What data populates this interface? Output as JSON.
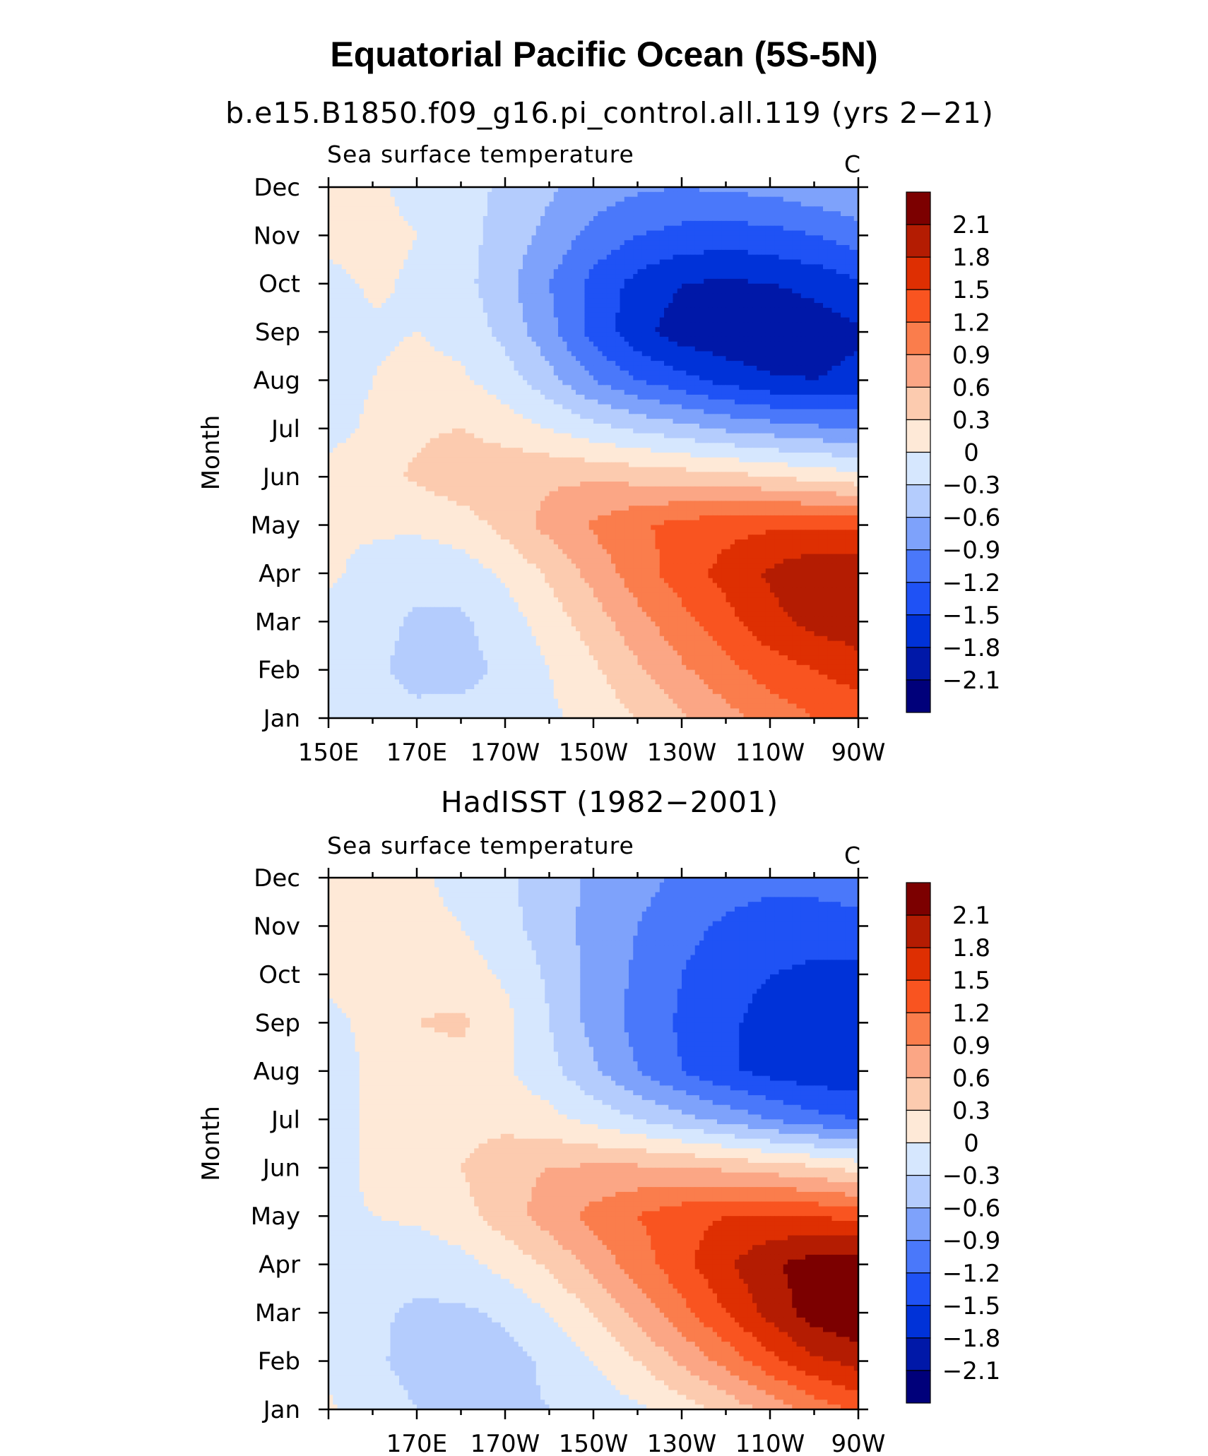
{
  "title": "Equatorial Pacific Ocean (5S-5N)",
  "colors": {
    "levels": [
      -2.1,
      -1.8,
      -1.5,
      -1.2,
      -0.9,
      -0.6,
      -0.3,
      0,
      0.3,
      0.6,
      0.9,
      1.2,
      1.5,
      1.8,
      2.1
    ],
    "fills": [
      "#00007a",
      "#0018a8",
      "#0032d8",
      "#1f52f5",
      "#4a78fa",
      "#7ea2fb",
      "#b4ccfd",
      "#d6e7fe",
      "#fee9d7",
      "#fccbaf",
      "#fba685",
      "#fa7d4c",
      "#f95420",
      "#de2f02",
      "#b41c02",
      "#7c0000"
    ]
  },
  "chart_data": [
    {
      "type": "heatmap",
      "title": "b.e15.B1850.f09_g16.pi_control.all.119 (yrs 2−21)",
      "variable": "Sea surface temperature",
      "units": "C",
      "xlabel": "",
      "ylabel": "Month",
      "x": [
        150,
        160,
        170,
        180,
        190,
        200,
        210,
        220,
        230,
        240,
        250,
        260,
        270
      ],
      "x_ticklabels": [
        "150E",
        "170E",
        "170W",
        "150W",
        "130W",
        "110W",
        "90W"
      ],
      "xlim": [
        150,
        270
      ],
      "y_ticklabels": [
        "Jan",
        "Feb",
        "Mar",
        "Apr",
        "May",
        "Jun",
        "Jul",
        "Aug",
        "Sep",
        "Oct",
        "Nov",
        "Dec"
      ],
      "colorbar_labels": [
        "2.1",
        "1.8",
        "1.5",
        "1.2",
        "0.9",
        "0.6",
        "0.3",
        "0",
        "−0.3",
        "−0.6",
        "−0.9",
        "−1.2",
        "−1.5",
        "−1.8",
        "−2.1"
      ],
      "z": [
        [
          -0.1,
          -0.15,
          -0.22,
          -0.2,
          -0.15,
          -0.05,
          0.1,
          0.3,
          0.55,
          0.8,
          1.0,
          1.2,
          1.3
        ],
        [
          -0.1,
          -0.25,
          -0.4,
          -0.4,
          -0.25,
          0.0,
          0.25,
          0.55,
          0.85,
          1.1,
          1.35,
          1.5,
          1.65
        ],
        [
          -0.1,
          -0.2,
          -0.35,
          -0.35,
          -0.15,
          0.15,
          0.45,
          0.8,
          1.1,
          1.4,
          1.7,
          1.9,
          2.0
        ],
        [
          0.05,
          -0.1,
          -0.2,
          -0.15,
          0.05,
          0.35,
          0.7,
          1.05,
          1.35,
          1.6,
          1.85,
          2.05,
          2.1
        ],
        [
          0.05,
          0.05,
          0.05,
          0.15,
          0.4,
          0.7,
          0.95,
          1.15,
          1.3,
          1.4,
          1.45,
          1.45,
          1.4
        ],
        [
          0.1,
          0.2,
          0.35,
          0.5,
          0.55,
          0.55,
          0.55,
          0.5,
          0.45,
          0.4,
          0.3,
          0.2,
          0.1
        ],
        [
          -0.1,
          0.05,
          0.25,
          0.3,
          0.15,
          0.0,
          -0.2,
          -0.35,
          -0.5,
          -0.65,
          -0.75,
          -0.85,
          -0.9
        ],
        [
          -0.15,
          0.0,
          0.1,
          0.05,
          -0.15,
          -0.5,
          -0.9,
          -1.2,
          -1.4,
          -1.6,
          -1.75,
          -1.8,
          -1.7
        ],
        [
          -0.2,
          -0.05,
          0.0,
          -0.1,
          -0.4,
          -0.8,
          -1.3,
          -1.7,
          -1.95,
          -2.05,
          -2.1,
          -2.0,
          -1.85
        ],
        [
          -0.1,
          0.05,
          -0.05,
          -0.2,
          -0.5,
          -0.9,
          -1.3,
          -1.6,
          -1.8,
          -1.85,
          -1.8,
          -1.7,
          -1.55
        ],
        [
          0.1,
          0.1,
          0.0,
          -0.2,
          -0.4,
          -0.7,
          -1.0,
          -1.2,
          -1.3,
          -1.35,
          -1.3,
          -1.2,
          -1.05
        ],
        [
          0.15,
          0.05,
          -0.1,
          -0.2,
          -0.35,
          -0.55,
          -0.75,
          -0.85,
          -0.9,
          -0.85,
          -0.8,
          -0.7,
          -0.6
        ]
      ]
    },
    {
      "type": "heatmap",
      "title": "HadISST (1982−2001)",
      "variable": "Sea surface temperature",
      "units": "C",
      "xlabel": "",
      "ylabel": "Month",
      "x": [
        150,
        160,
        170,
        180,
        190,
        200,
        210,
        220,
        230,
        240,
        250,
        260,
        270
      ],
      "x_ticklabels": [
        "170E",
        "170W",
        "150W",
        "130W",
        "110W",
        "90W"
      ],
      "xlim": [
        150,
        270
      ],
      "y_ticklabels": [
        "Jan",
        "Feb",
        "Mar",
        "Apr",
        "May",
        "Jun",
        "Jul",
        "Aug",
        "Sep",
        "Oct",
        "Nov",
        "Dec"
      ],
      "colorbar_labels": [
        "2.1",
        "1.8",
        "1.5",
        "1.2",
        "0.9",
        "0.6",
        "0.3",
        "0",
        "−0.3",
        "−0.6",
        "−0.9",
        "−1.2",
        "−1.5",
        "−1.8",
        "−2.1"
      ],
      "z": [
        [
          0.05,
          -0.15,
          -0.3,
          -0.35,
          -0.35,
          -0.3,
          -0.2,
          -0.05,
          0.15,
          0.4,
          0.7,
          1.0,
          1.3
        ],
        [
          -0.1,
          -0.25,
          -0.4,
          -0.45,
          -0.4,
          -0.25,
          0.0,
          0.3,
          0.65,
          1.0,
          1.4,
          1.75,
          1.9
        ],
        [
          -0.1,
          -0.25,
          -0.35,
          -0.35,
          -0.25,
          0.0,
          0.3,
          0.7,
          1.1,
          1.5,
          1.9,
          2.25,
          2.4
        ],
        [
          -0.1,
          -0.15,
          -0.2,
          -0.1,
          0.1,
          0.35,
          0.7,
          1.05,
          1.4,
          1.75,
          2.05,
          2.25,
          2.3
        ],
        [
          -0.05,
          0.0,
          0.05,
          0.2,
          0.45,
          0.75,
          1.0,
          1.2,
          1.4,
          1.5,
          1.55,
          1.5,
          1.4
        ],
        [
          -0.1,
          0.05,
          0.15,
          0.3,
          0.5,
          0.6,
          0.65,
          0.65,
          0.6,
          0.55,
          0.45,
          0.35,
          0.2
        ],
        [
          -0.1,
          0.05,
          0.15,
          0.2,
          0.2,
          0.1,
          -0.1,
          -0.3,
          -0.5,
          -0.7,
          -0.9,
          -1.1,
          -1.2
        ],
        [
          -0.15,
          0.05,
          0.2,
          0.2,
          0.05,
          -0.2,
          -0.55,
          -0.9,
          -1.2,
          -1.45,
          -1.6,
          -1.7,
          -1.7
        ],
        [
          -0.1,
          0.1,
          0.3,
          0.35,
          0.1,
          -0.3,
          -0.7,
          -1.0,
          -1.25,
          -1.45,
          -1.6,
          -1.7,
          -1.7
        ],
        [
          0.1,
          0.15,
          0.2,
          0.15,
          -0.05,
          -0.35,
          -0.7,
          -0.95,
          -1.2,
          -1.4,
          -1.5,
          -1.55,
          -1.55
        ],
        [
          0.15,
          0.15,
          0.1,
          0.0,
          -0.2,
          -0.45,
          -0.7,
          -0.9,
          -1.1,
          -1.25,
          -1.35,
          -1.4,
          -1.35
        ],
        [
          0.15,
          0.1,
          0.05,
          -0.1,
          -0.25,
          -0.45,
          -0.65,
          -0.8,
          -0.95,
          -1.05,
          -1.1,
          -1.05,
          -0.95
        ]
      ]
    }
  ]
}
